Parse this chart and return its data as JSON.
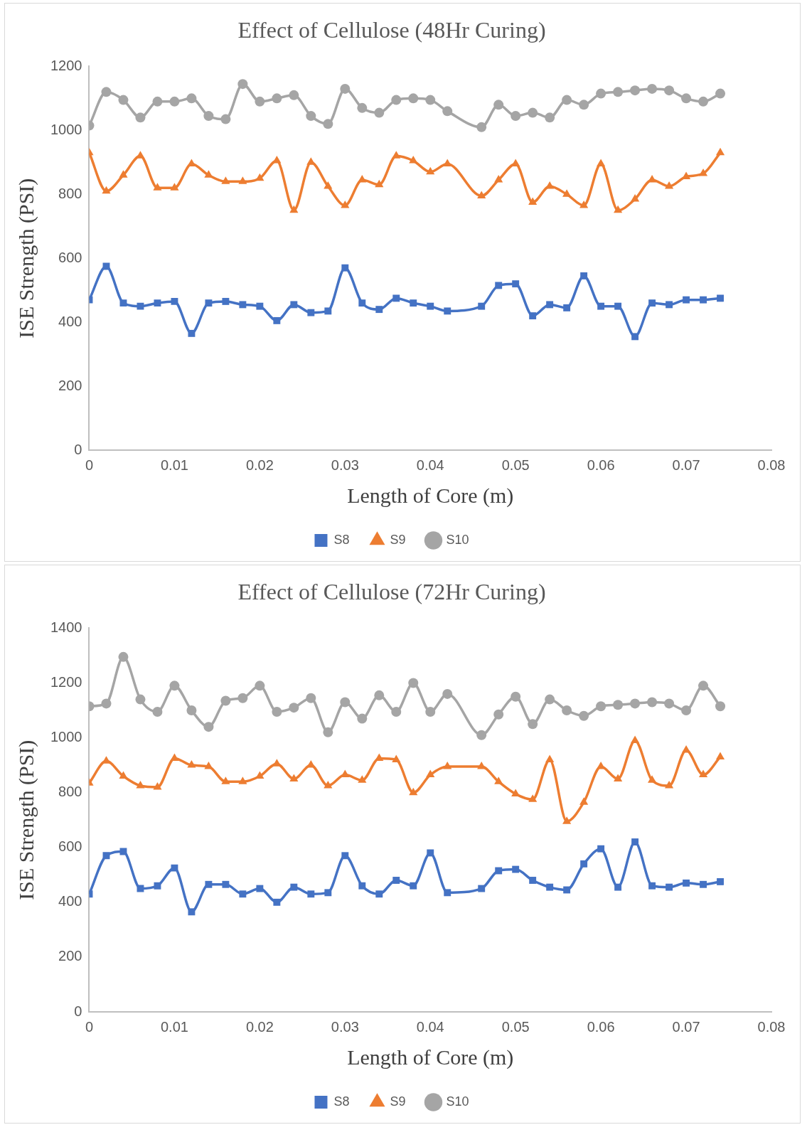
{
  "chart_data": [
    {
      "type": "line",
      "title": "Effect of Cellulose (48Hr Curing)",
      "xlabel": "Length of Core (m)",
      "ylabel": "ISE Strength (PSI)",
      "x": [
        0,
        0.002,
        0.004,
        0.006,
        0.008,
        0.01,
        0.012,
        0.014,
        0.016,
        0.018,
        0.02,
        0.022,
        0.024,
        0.026,
        0.028,
        0.03,
        0.032,
        0.034,
        0.036,
        0.038,
        0.04,
        0.042,
        0.046,
        0.048,
        0.05,
        0.052,
        0.054,
        0.056,
        0.058,
        0.06,
        0.062,
        0.064,
        0.066,
        0.068,
        0.07,
        0.072,
        0.074
      ],
      "xlim": [
        0,
        0.08
      ],
      "xticks": [
        0,
        0.01,
        0.02,
        0.03,
        0.04,
        0.05,
        0.06,
        0.07,
        0.08
      ],
      "ylim": [
        0,
        1200
      ],
      "yticks": [
        0,
        200,
        400,
        600,
        800,
        1000,
        1200
      ],
      "grid": false,
      "legend": "bottom",
      "series": [
        {
          "name": "S8",
          "color": "#4472c4",
          "marker": "square",
          "values": [
            470,
            575,
            460,
            450,
            460,
            465,
            365,
            460,
            465,
            455,
            450,
            405,
            455,
            430,
            435,
            570,
            460,
            440,
            475,
            460,
            450,
            435,
            450,
            515,
            520,
            420,
            455,
            445,
            545,
            450,
            450,
            355,
            460,
            455,
            470,
            470,
            475
          ]
        },
        {
          "name": "S9",
          "color": "#ed7d31",
          "marker": "triangle",
          "values": [
            930,
            810,
            860,
            920,
            820,
            820,
            895,
            860,
            840,
            840,
            850,
            905,
            750,
            900,
            825,
            765,
            845,
            830,
            920,
            905,
            870,
            895,
            795,
            845,
            895,
            775,
            825,
            800,
            765,
            895,
            750,
            785,
            845,
            825,
            855,
            865,
            930
          ]
        },
        {
          "name": "S10",
          "color": "#a5a5a5",
          "marker": "circle",
          "values": [
            1015,
            1120,
            1095,
            1040,
            1090,
            1090,
            1100,
            1045,
            1035,
            1145,
            1090,
            1100,
            1110,
            1045,
            1020,
            1130,
            1070,
            1055,
            1095,
            1100,
            1095,
            1060,
            1010,
            1080,
            1045,
            1055,
            1040,
            1095,
            1080,
            1115,
            1120,
            1125,
            1130,
            1125,
            1100,
            1090,
            1115
          ]
        }
      ]
    },
    {
      "type": "line",
      "title": "Effect of Cellulose (72Hr Curing)",
      "xlabel": "Length of Core (m)",
      "ylabel": "ISE Strength (PSI)",
      "x": [
        0,
        0.002,
        0.004,
        0.006,
        0.008,
        0.01,
        0.012,
        0.014,
        0.016,
        0.018,
        0.02,
        0.022,
        0.024,
        0.026,
        0.028,
        0.03,
        0.032,
        0.034,
        0.036,
        0.038,
        0.04,
        0.042,
        0.046,
        0.048,
        0.05,
        0.052,
        0.054,
        0.056,
        0.058,
        0.06,
        0.062,
        0.064,
        0.066,
        0.068,
        0.07,
        0.072,
        0.074
      ],
      "xlim": [
        0,
        0.08
      ],
      "xticks": [
        0,
        0.01,
        0.02,
        0.03,
        0.04,
        0.05,
        0.06,
        0.07,
        0.08
      ],
      "ylim": [
        0,
        1400
      ],
      "yticks": [
        0,
        200,
        400,
        600,
        800,
        1000,
        1200,
        1400
      ],
      "grid": false,
      "legend": "bottom",
      "series": [
        {
          "name": "S8",
          "color": "#4472c4",
          "marker": "square",
          "values": [
            430,
            570,
            585,
            450,
            460,
            525,
            365,
            465,
            465,
            430,
            450,
            400,
            455,
            430,
            435,
            570,
            460,
            430,
            480,
            460,
            580,
            435,
            450,
            515,
            520,
            480,
            455,
            445,
            540,
            595,
            455,
            620,
            460,
            455,
            470,
            465,
            475
          ]
        },
        {
          "name": "S9",
          "color": "#ed7d31",
          "marker": "triangle",
          "values": [
            835,
            915,
            860,
            825,
            820,
            925,
            900,
            895,
            840,
            840,
            860,
            905,
            850,
            900,
            825,
            865,
            845,
            925,
            920,
            800,
            865,
            895,
            895,
            840,
            795,
            775,
            920,
            695,
            765,
            895,
            850,
            990,
            845,
            825,
            955,
            865,
            930
          ]
        },
        {
          "name": "S10",
          "color": "#a5a5a5",
          "marker": "circle",
          "values": [
            1115,
            1125,
            1295,
            1140,
            1095,
            1190,
            1100,
            1040,
            1135,
            1145,
            1190,
            1095,
            1110,
            1145,
            1020,
            1130,
            1070,
            1155,
            1095,
            1200,
            1095,
            1160,
            1010,
            1085,
            1150,
            1050,
            1140,
            1100,
            1080,
            1115,
            1120,
            1125,
            1130,
            1125,
            1100,
            1190,
            1115
          ]
        }
      ]
    }
  ]
}
